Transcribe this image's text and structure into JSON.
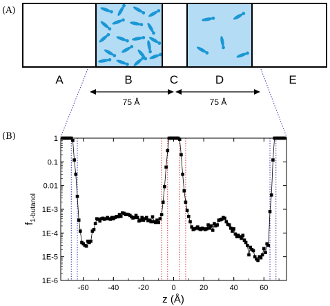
{
  "panel_a": {
    "label": "(A)",
    "regions": [
      "A",
      "B",
      "C",
      "D",
      "E"
    ],
    "spans": [
      "75 Å",
      "75 Å"
    ],
    "colors": {
      "water_fill": "#b5dcf5",
      "molecule": "#1a97d4"
    }
  },
  "panel_b": {
    "label": "(B)"
  },
  "chart_data": {
    "type": "scatter",
    "title": "",
    "xlabel": "z (Å)",
    "ylabel": "f",
    "ylabel_subscript": "1-butanol",
    "xlim": [
      -75,
      75
    ],
    "ylim": [
      1e-06,
      1
    ],
    "yscale": "log",
    "xticks": [
      "-60",
      "-40",
      "-20",
      "0",
      "20",
      "40",
      "60"
    ],
    "yticks": [
      "1E-6",
      "1E-5",
      "1E-4",
      "1E-3",
      "0.01",
      "0.1",
      "1"
    ],
    "grid": false,
    "legend": "none",
    "boundary_lines": {
      "blue": [
        -68,
        -64,
        64,
        68
      ],
      "red": [
        -8,
        -4,
        4,
        8
      ]
    },
    "colors": {
      "points": "#000000",
      "blue_lines": "#2a2aa8",
      "red_lines": "#cc3030"
    },
    "series": [
      {
        "x": [
          -74,
          -73,
          -72,
          -71,
          -70,
          -69,
          -68,
          -67,
          -66,
          -65,
          -64,
          -63,
          -62,
          -61,
          -60,
          -59,
          -58,
          -57,
          -56,
          -55,
          -54,
          -53,
          -52,
          -51,
          -50,
          -49,
          -48,
          -47,
          -46,
          -45,
          -44,
          -43,
          -42,
          -41,
          -40,
          -39,
          -38,
          -37,
          -36,
          -35,
          -34,
          -33,
          -32,
          -31,
          -30,
          -29,
          -28,
          -27,
          -26,
          -25,
          -24,
          -23,
          -22,
          -21,
          -20,
          -19,
          -18,
          -17,
          -16,
          -15,
          -14,
          -13,
          -12,
          -11,
          -10,
          -9,
          -8,
          -7,
          -6,
          -5,
          -4,
          -3,
          -2,
          -1,
          0,
          1,
          2,
          3,
          4,
          5,
          6,
          7,
          8,
          9,
          10,
          11,
          12,
          13,
          14,
          15,
          16,
          17,
          18,
          19,
          20,
          21,
          22,
          23,
          24,
          25,
          26,
          27,
          28,
          29,
          30,
          31,
          32,
          33,
          34,
          35,
          36,
          37,
          38,
          39,
          40,
          41,
          42,
          43,
          44,
          45,
          46,
          47,
          48,
          49,
          50,
          51,
          52,
          53,
          54,
          55,
          56,
          57,
          58,
          59,
          60,
          61,
          62,
          63,
          64,
          65,
          66,
          67,
          68,
          69,
          70,
          71,
          72,
          73,
          74
        ],
        "y": [
          1,
          1,
          1,
          1,
          1,
          1,
          1,
          0.8,
          0.12,
          0.03,
          0.0035,
          0.00035,
          0.00012,
          4e-05,
          3.5e-05,
          3e-05,
          2.8e-05,
          4.5e-05,
          4e-05,
          4.5e-05,
          0.00012,
          0.00014,
          0.00025,
          0.0004,
          0.00038,
          0.00032,
          0.0004,
          0.00042,
          0.00038,
          0.0004,
          0.00045,
          0.0004,
          0.00038,
          0.00045,
          0.0004,
          0.00045,
          0.0005,
          0.00048,
          0.0006,
          0.0005,
          0.0007,
          0.00068,
          0.0006,
          0.00062,
          0.0006,
          0.00055,
          0.00048,
          0.00043,
          0.00045,
          0.00055,
          0.00045,
          0.00032,
          0.00035,
          0.00045,
          0.00035,
          0.0004,
          0.00045,
          0.00033,
          0.00035,
          0.0003,
          0.00048,
          0.0003,
          0.00028,
          0.00035,
          0.00028,
          0.0004,
          0.0006,
          0.002,
          0.009,
          0.06,
          0.3,
          1,
          1,
          1,
          1,
          1,
          1,
          1,
          0.9,
          0.2,
          0.03,
          0.006,
          0.002,
          0.0009,
          0.0005,
          0.0003,
          0.00018,
          0.00014,
          0.00015,
          0.00016,
          0.00018,
          0.00015,
          0.00014,
          0.00016,
          0.00015,
          0.00014,
          0.00015,
          0.00022,
          0.00016,
          0.0002,
          0.00013,
          0.00025,
          0.0002,
          0.00022,
          0.00035,
          0.00036,
          0.00038,
          0.00045,
          0.00042,
          0.0003,
          0.00023,
          0.00022,
          0.00016,
          0.00012,
          0.00015,
          9e-05,
          7e-05,
          8e-05,
          7e-05,
          6e-05,
          8e-05,
          5e-05,
          4e-05,
          3e-05,
          1.2e-05,
          2.5e-05,
          2e-05,
          1.8e-05,
          1e-05,
          8e-06,
          7e-06,
          1e-05,
          9e-06,
          1.2e-05,
          2.2e-05,
          1.5e-05,
          3.5e-05,
          3e-05,
          0.0008,
          0.004,
          0.12,
          1,
          1,
          1,
          1,
          1,
          1,
          1,
          1
        ]
      }
    ]
  }
}
